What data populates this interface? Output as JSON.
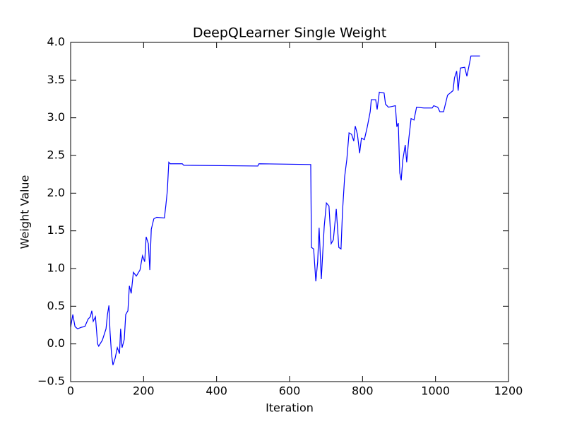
{
  "chart_data": {
    "type": "line",
    "title": "DeepQLearner Single Weight",
    "xlabel": "Iteration",
    "ylabel": "Weight Value",
    "xlim": [
      0,
      1200
    ],
    "xticks": [
      0,
      200,
      400,
      600,
      800,
      1000,
      1200
    ],
    "ylim": [
      -0.5,
      4.0
    ],
    "yticks": [
      {
        "value": -0.5,
        "label": "−0.5"
      },
      {
        "value": 0,
        "label": "0.0"
      },
      0.5,
      {
        "value": 1,
        "label": "1.0"
      },
      1.5,
      {
        "value": 2,
        "label": "2.0"
      },
      2.5,
      {
        "value": 3,
        "label": "3.0"
      },
      3.5,
      {
        "value": 4,
        "label": "4.0"
      }
    ],
    "grid": false,
    "series": [
      {
        "color": "#0000ff",
        "x": [
          0,
          6,
          12,
          19,
          29,
          39,
          48,
          54,
          58,
          62,
          68,
          74,
          77,
          87,
          97,
          101,
          105,
          108,
          112,
          116,
          122,
          128,
          134,
          137,
          141,
          147,
          151,
          157,
          161,
          166,
          172,
          180,
          190,
          197,
          203,
          207,
          213,
          217,
          221,
          228,
          236,
          257,
          261,
          265,
          269,
          273,
          306,
          310,
          513,
          516,
          658,
          660,
          666,
          672,
          677,
          681,
          687,
          695,
          701,
          708,
          714,
          720,
          728,
          735,
          741,
          745,
          751,
          757,
          763,
          770,
          776,
          780,
          786,
          792,
          797,
          805,
          813,
          821,
          824,
          836,
          840,
          846,
          859,
          863,
          871,
          890,
          894,
          898,
          902,
          906,
          910,
          917,
          921,
          927,
          933,
          941,
          948,
          968,
          991,
          995,
          1006,
          1012,
          1022,
          1026,
          1033,
          1048,
          1052,
          1058,
          1062,
          1068,
          1080,
          1086,
          1093,
          1097,
          1122
        ],
        "values": [
          0.22,
          0.39,
          0.23,
          0.2,
          0.22,
          0.23,
          0.33,
          0.36,
          0.44,
          0.3,
          0.36,
          0.0,
          -0.03,
          0.05,
          0.2,
          0.39,
          0.51,
          0.16,
          -0.13,
          -0.28,
          -0.19,
          -0.05,
          -0.13,
          0.2,
          -0.05,
          0.06,
          0.39,
          0.44,
          0.77,
          0.67,
          0.95,
          0.9,
          0.98,
          1.17,
          1.09,
          1.42,
          1.33,
          0.98,
          1.52,
          1.66,
          1.68,
          1.67,
          1.84,
          2.03,
          2.41,
          2.39,
          2.39,
          2.37,
          2.36,
          2.39,
          2.38,
          1.28,
          1.26,
          0.83,
          1.09,
          1.54,
          0.86,
          1.56,
          1.87,
          1.83,
          1.33,
          1.38,
          1.79,
          1.28,
          1.26,
          1.75,
          2.22,
          2.45,
          2.8,
          2.78,
          2.69,
          2.89,
          2.78,
          2.53,
          2.73,
          2.71,
          2.88,
          3.08,
          3.24,
          3.24,
          3.11,
          3.34,
          3.33,
          3.18,
          3.14,
          3.16,
          2.88,
          2.93,
          2.27,
          2.17,
          2.43,
          2.64,
          2.41,
          2.73,
          2.99,
          2.97,
          3.14,
          3.13,
          3.13,
          3.16,
          3.14,
          3.08,
          3.08,
          3.16,
          3.3,
          3.36,
          3.53,
          3.62,
          3.36,
          3.66,
          3.67,
          3.55,
          3.72,
          3.82,
          3.82
        ]
      }
    ]
  }
}
